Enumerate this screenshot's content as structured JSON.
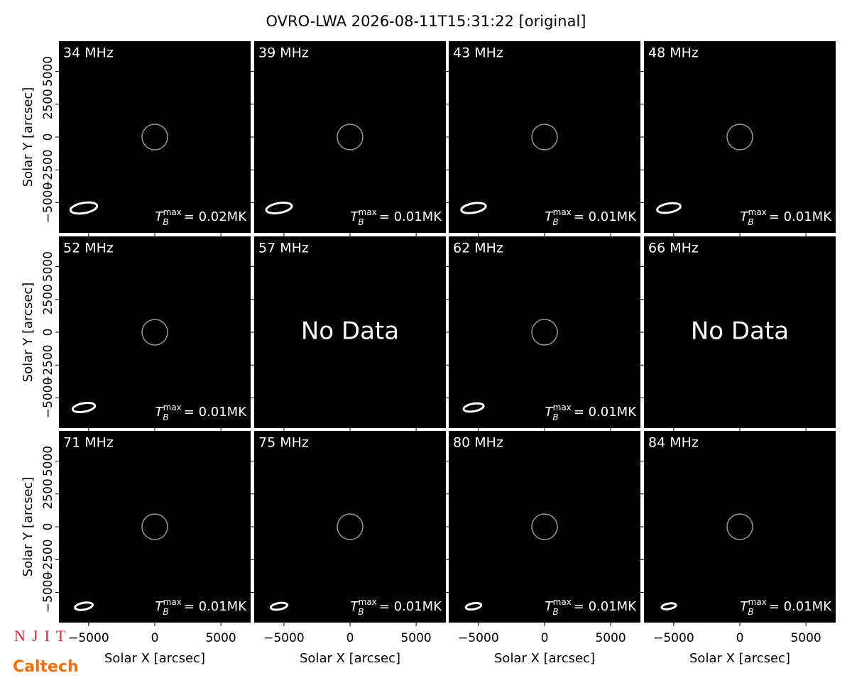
{
  "chart_data": {
    "type": "image-grid",
    "title": "OVRO-LWA 2026-08-11T15:31:22 [original]",
    "xlabel": "Solar X [arcsec]",
    "ylabel": "Solar Y [arcsec]",
    "xlim": [
      -7250,
      7250
    ],
    "ylim": [
      -7300,
      7300
    ],
    "xticks": [
      {
        "value": -5000,
        "label": "−5000"
      },
      0,
      5000
    ],
    "yticks": [
      {
        "value": -5000,
        "label": "−5000"
      },
      {
        "value": -2500,
        "label": "−2500"
      },
      0,
      2500,
      5000
    ],
    "tb_symbol": "T",
    "tb_sub": "B",
    "tb_sup": "max",
    "panels": [
      {
        "label": "34 MHz",
        "tb_max": "= 0.02MK"
      },
      {
        "label": "39 MHz",
        "tb_max": "= 0.01MK"
      },
      {
        "label": "43 MHz",
        "tb_max": "= 0.01MK"
      },
      {
        "label": "48 MHz",
        "tb_max": "= 0.01MK"
      },
      {
        "label": "52 MHz",
        "tb_max": "= 0.01MK"
      },
      {
        "label": "57 MHz",
        "no_data": "No Data"
      },
      {
        "label": "62 MHz",
        "tb_max": "= 0.01MK"
      },
      {
        "label": "66 MHz",
        "no_data": "No Data"
      },
      {
        "label": "71 MHz",
        "tb_max": "= 0.01MK"
      },
      {
        "label": "75 MHz",
        "tb_max": "= 0.01MK"
      },
      {
        "label": "80 MHz",
        "tb_max": "= 0.01MK"
      },
      {
        "label": "84 MHz",
        "tb_max": "= 0.01MK"
      }
    ],
    "logos": [
      "NJIT",
      "Caltech"
    ]
  }
}
